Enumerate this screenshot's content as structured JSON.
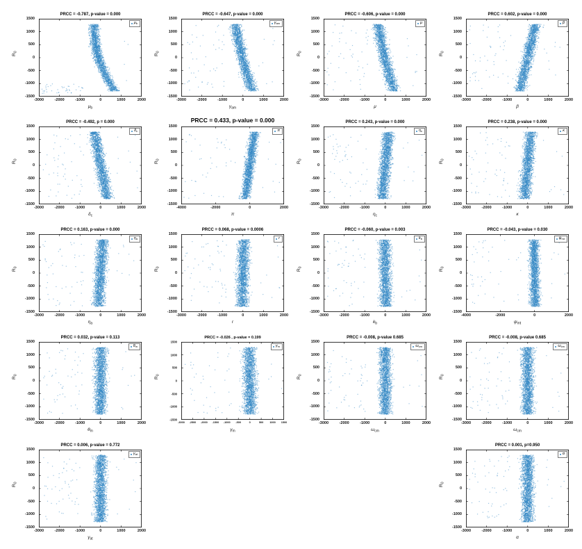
{
  "figure": {
    "background": "#ffffff",
    "point_color": "#2f86c3",
    "axis_color": "#000000",
    "ylabel": {
      "main": "R",
      "sub": "0"
    },
    "grid": {
      "rows": 5,
      "cols": 4
    }
  },
  "chart_data": [
    {
      "type": "scatter",
      "row": 1,
      "col": 1,
      "title": "PRCC = -0.787, p-value = 0.000",
      "prcc": -0.787,
      "xlabel": {
        "main": "μ",
        "sub": "b"
      },
      "xlim": [
        -3000,
        2000
      ],
      "ylim": [
        -1500,
        1500
      ],
      "xticks": [
        -3000,
        -2000,
        -1000,
        0,
        1000,
        2000
      ],
      "yticks": [
        -1500,
        -1000,
        -500,
        0,
        500,
        1000,
        1500
      ],
      "cloud": {
        "n": 2100,
        "sigma_x": 200,
        "curve": 300,
        "outlier_band": "bottom",
        "outliers_left": 40,
        "outliers_right": 4
      }
    },
    {
      "type": "scatter",
      "row": 1,
      "col": 2,
      "title": "PRCC = -0.647, p-value = 0.000",
      "prcc": -0.647,
      "xlabel": {
        "main": "γ",
        "sub": "am"
      },
      "xlim": [
        -3000,
        2000
      ],
      "ylim": [
        -1500,
        1500
      ],
      "xticks": [
        -3000,
        -2000,
        -1000,
        0,
        1000,
        2000
      ],
      "yticks": [
        -1500,
        -1000,
        -500,
        0,
        500,
        1000,
        1500
      ],
      "cloud": {
        "n": 2100,
        "sigma_x": 220,
        "curve": 80,
        "outlier_band": "full",
        "outliers_left": 48,
        "outliers_right": 8
      }
    },
    {
      "type": "scatter",
      "row": 1,
      "col": 3,
      "title": "PRCC = -0.606, p-value = 0.000",
      "prcc": -0.606,
      "xlabel": {
        "main": "μ",
        "sub": ""
      },
      "xlim": [
        -3000,
        2000
      ],
      "ylim": [
        -1500,
        1500
      ],
      "xticks": [
        -3000,
        -2000,
        -1000,
        0,
        1000,
        2000
      ],
      "yticks": [
        -1500,
        -1000,
        -500,
        0,
        500,
        1000,
        1500
      ],
      "cloud": {
        "n": 2100,
        "sigma_x": 225,
        "curve": 60,
        "outlier_band": "full",
        "outliers_left": 48,
        "outliers_right": 8
      }
    },
    {
      "type": "scatter",
      "row": 1,
      "col": 4,
      "title": "PRCC = 0.602, p-value = 0.000",
      "prcc": 0.602,
      "xlabel": {
        "main": "β",
        "sub": ""
      },
      "xlim": [
        -3000,
        2000
      ],
      "ylim": [
        -1500,
        1500
      ],
      "xticks": [
        -3000,
        -2000,
        -1000,
        0,
        1000,
        2000
      ],
      "yticks": [
        -1500,
        -1000,
        -500,
        0,
        500,
        1000,
        1500
      ],
      "cloud": {
        "n": 2100,
        "sigma_x": 225,
        "curve": 0,
        "outlier_band": "full",
        "outliers_left": 48,
        "outliers_right": 8
      }
    },
    {
      "type": "scatter",
      "row": 2,
      "col": 1,
      "title": "PRCC = -0.492, p = 0.000",
      "prcc": -0.492,
      "xlabel": {
        "main": "δ",
        "sub": "c"
      },
      "xlim": [
        -3000,
        2000
      ],
      "ylim": [
        -1500,
        1500
      ],
      "xticks": [
        -3000,
        -2000,
        -1000,
        0,
        1000,
        2000
      ],
      "yticks": [
        -1500,
        -1000,
        -500,
        0,
        500,
        1000,
        1500
      ],
      "cloud": {
        "n": 2100,
        "sigma_x": 230,
        "curve": 0,
        "outlier_band": "full",
        "outliers_left": 50,
        "outliers_right": 8
      }
    },
    {
      "type": "scatter",
      "row": 2,
      "col": 2,
      "title": "PRCC = 0.433, p-value = 0.000",
      "prcc": 0.433,
      "big_title": true,
      "xlabel": {
        "main": "π",
        "sub": ""
      },
      "xlim": [
        -4000,
        2000
      ],
      "ylim": [
        -1500,
        1500
      ],
      "xticks": [
        -4000,
        -2000,
        0,
        2000
      ],
      "yticks": [
        -1500,
        -1000,
        -500,
        0,
        500,
        1000,
        1500
      ],
      "cloud": {
        "n": 2100,
        "sigma_x": 235,
        "curve": 0,
        "outlier_band": "full",
        "outliers_left": 40,
        "outliers_right": 8
      }
    },
    {
      "type": "scatter",
      "row": 2,
      "col": 3,
      "title": "PRCC = 0.243, p-value = 0.000",
      "prcc": 0.243,
      "xlabel": {
        "main": "η",
        "sub": "c"
      },
      "xlim": [
        -3000,
        2000
      ],
      "ylim": [
        -1500,
        1500
      ],
      "xticks": [
        -3000,
        -2000,
        -1000,
        0,
        1000,
        2000
      ],
      "yticks": [
        -1500,
        -1000,
        -500,
        0,
        500,
        1000,
        1500
      ],
      "cloud": {
        "n": 2100,
        "sigma_x": 235,
        "curve": 0,
        "outlier_band": "full",
        "outliers_left": 50,
        "outliers_right": 8
      }
    },
    {
      "type": "scatter",
      "row": 2,
      "col": 4,
      "title": "PRCC = 0.238, p-value = 0.000",
      "prcc": 0.238,
      "xlabel": {
        "main": "κ",
        "sub": ""
      },
      "xlim": [
        -3000,
        2000
      ],
      "ylim": [
        -1500,
        1500
      ],
      "xticks": [
        -3000,
        -2000,
        -1000,
        0,
        1000,
        2000
      ],
      "yticks": [
        -1500,
        -1000,
        -500,
        0,
        500,
        1000,
        1500
      ],
      "cloud": {
        "n": 2100,
        "sigma_x": 235,
        "curve": 0,
        "outlier_band": "full",
        "outliers_left": 50,
        "outliers_right": 8
      }
    },
    {
      "type": "scatter",
      "row": 3,
      "col": 1,
      "title": "PRCC = 0.163, p-value = 0.000",
      "prcc": 0.163,
      "xlabel": {
        "main": "η",
        "sub": "a"
      },
      "xlim": [
        -3000,
        2000
      ],
      "ylim": [
        -1500,
        1500
      ],
      "xticks": [
        -3000,
        -2000,
        -1000,
        0,
        1000,
        2000
      ],
      "yticks": [
        -1500,
        -1000,
        -500,
        0,
        500,
        1000,
        1500
      ],
      "cloud": {
        "n": 2100,
        "sigma_x": 240,
        "curve": 0,
        "outlier_band": "full",
        "outliers_left": 50,
        "outliers_right": 8
      }
    },
    {
      "type": "scatter",
      "row": 3,
      "col": 2,
      "title": "PRCC = 0.068, p-value = 0.0006",
      "prcc": 0.068,
      "xlabel": {
        "main": "r",
        "sub": ""
      },
      "xlim": [
        -3000,
        2000
      ],
      "ylim": [
        -1500,
        1500
      ],
      "xticks": [
        -3000,
        -2000,
        -1000,
        0,
        1000,
        2000
      ],
      "yticks": [
        -1500,
        -1000,
        -500,
        0,
        500,
        1000,
        1500
      ],
      "cloud": {
        "n": 2100,
        "sigma_x": 245,
        "curve": 0,
        "outlier_band": "full",
        "outliers_left": 52,
        "outliers_right": 8
      }
    },
    {
      "type": "scatter",
      "row": 3,
      "col": 3,
      "title": "PRCC = -0.060, p-value = 0.003",
      "prcc": -0.06,
      "xlabel": {
        "main": "k",
        "sub": "b"
      },
      "xlim": [
        -3000,
        2000
      ],
      "ylim": [
        -1500,
        1500
      ],
      "xticks": [
        -3000,
        -2000,
        -1000,
        0,
        1000,
        2000
      ],
      "yticks": [
        -1500,
        -1000,
        -500,
        0,
        500,
        1000,
        1500
      ],
      "cloud": {
        "n": 2100,
        "sigma_x": 245,
        "curve": 0,
        "outlier_band": "full",
        "outliers_left": 52,
        "outliers_right": 8
      }
    },
    {
      "type": "scatter",
      "row": 3,
      "col": 4,
      "title": "PRCC = -0.043, p-value = 0.030",
      "prcc": -0.043,
      "xlabel": {
        "main": "ψ",
        "sub": "mt"
      },
      "xlim": [
        -4000,
        2000
      ],
      "ylim": [
        -1500,
        1500
      ],
      "xticks": [
        -4000,
        -2000,
        0,
        2000
      ],
      "yticks": [
        -1500,
        -1000,
        -500,
        0,
        500,
        1000,
        1500
      ],
      "cloud": {
        "n": 2100,
        "sigma_x": 245,
        "curve": 0,
        "outlier_band": "full",
        "outliers_left": 42,
        "outliers_right": 8
      }
    },
    {
      "type": "scatter",
      "row": 4,
      "col": 1,
      "title": "PRCC = 0.032, p-value = 0.113",
      "prcc": 0.032,
      "xlabel": {
        "main": "θ",
        "sub": "m"
      },
      "xlim": [
        -3000,
        2000
      ],
      "ylim": [
        -1500,
        1500
      ],
      "xticks": [
        -3000,
        -2000,
        -1000,
        0,
        1000,
        2000
      ],
      "yticks": [
        -1500,
        -1000,
        -500,
        0,
        500,
        1000,
        1500
      ],
      "cloud": {
        "n": 2100,
        "sigma_x": 250,
        "curve": 0,
        "outlier_band": "full",
        "outliers_left": 52,
        "outliers_right": 8
      }
    },
    {
      "type": "scatter",
      "row": 4,
      "col": 2,
      "title": "PRCC = -0.026 , p-value = 0.199",
      "prcc": -0.026,
      "compact": true,
      "xlabel": {
        "main": "γ",
        "sub": "m"
      },
      "xlim": [
        -3000,
        1500
      ],
      "ylim": [
        -1500,
        1500
      ],
      "xticks": [
        -3000,
        -2500,
        -2000,
        -1500,
        -1000,
        -500,
        0,
        500,
        1000,
        1500
      ],
      "yticks": [
        -1500,
        -1000,
        -500,
        0,
        500,
        1000,
        1500
      ],
      "cloud": {
        "n": 2100,
        "sigma_x": 250,
        "curve": 0,
        "outlier_band": "full",
        "outliers_left": 40,
        "outliers_right": 6
      }
    },
    {
      "type": "scatter",
      "row": 4,
      "col": 3,
      "title": "PRCC = -0.008, p-value 0.685",
      "prcc": -0.008,
      "xlabel": {
        "main": "ω",
        "sub": "cm"
      },
      "xlim": [
        -3000,
        2000
      ],
      "ylim": [
        -1500,
        1500
      ],
      "xticks": [
        -3000,
        -2000,
        -1000,
        0,
        1000,
        2000
      ],
      "yticks": [
        -1500,
        -1000,
        -500,
        0,
        500,
        1000,
        1500
      ],
      "cloud": {
        "n": 2100,
        "sigma_x": 250,
        "curve": 0,
        "outlier_band": "full",
        "outliers_left": 52,
        "outliers_right": 8
      }
    },
    {
      "type": "scatter",
      "row": 4,
      "col": 4,
      "title": "PRCC = -0.008, p-value 0.685",
      "prcc": -0.008,
      "xlabel": {
        "main": "ω",
        "sub": "cm"
      },
      "xlim": [
        -3000,
        2000
      ],
      "ylim": [
        -1500,
        1500
      ],
      "xticks": [
        -3000,
        -2000,
        -1000,
        0,
        1000,
        2000
      ],
      "yticks": [
        -1500,
        -1000,
        -500,
        0,
        500,
        1000,
        1500
      ],
      "cloud": {
        "n": 2100,
        "sigma_x": 250,
        "curve": 0,
        "outlier_band": "full",
        "outliers_left": 52,
        "outliers_right": 8
      }
    },
    {
      "type": "scatter",
      "row": 5,
      "col": 1,
      "title": "PRCC = 0.006, p-value = 0.772",
      "prcc": 0.006,
      "xlabel": {
        "main": "γ",
        "sub": "at"
      },
      "xlim": [
        -3000,
        2000
      ],
      "ylim": [
        -1500,
        1500
      ],
      "xticks": [
        -3000,
        -2000,
        -1000,
        0,
        1000,
        2000
      ],
      "yticks": [
        -1500,
        -1000,
        -500,
        0,
        500,
        1000,
        1500
      ],
      "cloud": {
        "n": 2100,
        "sigma_x": 250,
        "curve": 0,
        "outlier_band": "full",
        "outliers_left": 52,
        "outliers_right": 8
      }
    },
    {
      "type": "scatter",
      "row": 5,
      "col": 4,
      "title": "PRCC = 0.001, p=0.950",
      "prcc": 0.001,
      "xlabel": {
        "main": "α",
        "sub": ""
      },
      "xlim": [
        -3000,
        2000
      ],
      "ylim": [
        -1500,
        1500
      ],
      "xticks": [
        -3000,
        -2000,
        -1000,
        0,
        1000,
        2000
      ],
      "yticks": [
        -1500,
        -1000,
        -500,
        0,
        500,
        1000,
        1500
      ],
      "cloud": {
        "n": 2100,
        "sigma_x": 250,
        "curve": 0,
        "outlier_band": "full",
        "outliers_left": 52,
        "outliers_right": 8
      }
    }
  ]
}
